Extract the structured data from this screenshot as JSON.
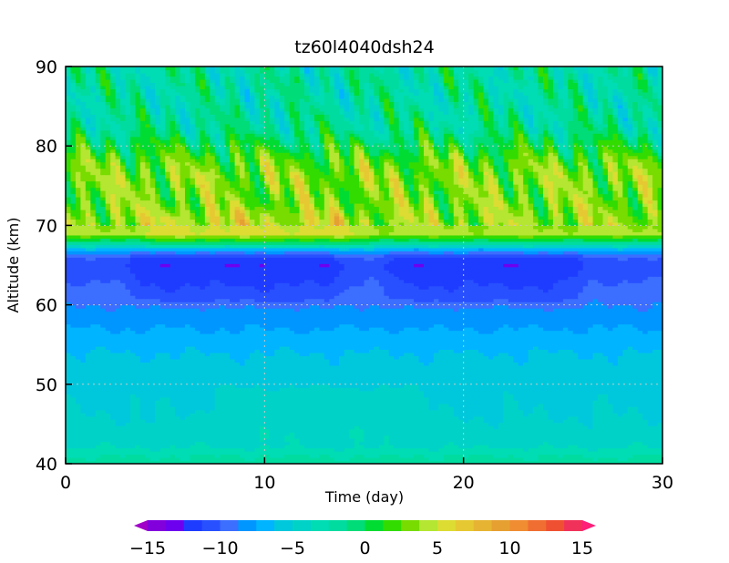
{
  "chart_data": {
    "type": "heatmap",
    "title": "tz60l4040dsh24",
    "xlabel": "Time (day)",
    "ylabel": "Altitude (km)",
    "xlim": [
      0,
      30
    ],
    "ylim": [
      40,
      90
    ],
    "x_ticks": [
      0,
      10,
      20,
      30
    ],
    "x_tick_labels": [
      "0",
      "10",
      "20",
      "30"
    ],
    "y_ticks": [
      40,
      50,
      60,
      70,
      80,
      90
    ],
    "y_tick_labels": [
      "40",
      "50",
      "60",
      "70",
      "80",
      "90"
    ],
    "grid": true,
    "colorbar": {
      "min": -15,
      "max": 15,
      "step": 1.5,
      "tick_values": [
        -15,
        -10,
        -5,
        0,
        5,
        10,
        15
      ],
      "tick_labels": [
        "−15",
        "−10",
        "−5",
        "0",
        "5",
        "10",
        "15"
      ],
      "extend": "both",
      "colors": [
        "#a000c8",
        "#8200dc",
        "#6e00f0",
        "#1e3cff",
        "#2850ff",
        "#3c6eff",
        "#0096ff",
        "#00b4ff",
        "#00c8dc",
        "#00d2c8",
        "#00dcb4",
        "#00dca0",
        "#00dc78",
        "#00dc32",
        "#32dc00",
        "#78dc00",
        "#b4e632",
        "#dcdc32",
        "#e6c832",
        "#e6b432",
        "#e6a032",
        "#f08c32",
        "#f06e32",
        "#f05032",
        "#f0325a",
        "#ff1e78"
      ]
    },
    "profile_altitude_km": [
      40,
      41,
      42,
      44,
      46,
      48,
      50,
      52,
      54,
      56,
      58,
      60,
      62,
      64,
      65,
      66,
      67,
      67.5,
      68,
      68.5,
      69,
      70,
      72,
      74,
      76,
      78,
      80,
      81,
      82,
      84,
      86,
      88,
      90
    ],
    "profile_value": [
      0.5,
      0.0,
      -1.5,
      -2.5,
      -3.0,
      -3.2,
      -3.5,
      -4.0,
      -4.5,
      -5.5,
      -6.5,
      -7.5,
      -8.5,
      -9.5,
      -10.0,
      -9.0,
      -5.0,
      -1.0,
      2.0,
      5.0,
      8.0,
      7.5,
      7.0,
      6.5,
      7.0,
      6.0,
      3.5,
      2.5,
      1.0,
      0.5,
      0.0,
      0.5,
      0.0
    ],
    "features": [
      {
        "t_start": 4,
        "t_end": 13,
        "z_min": 61,
        "z_max": 66,
        "delta": -1.8
      },
      {
        "t_start": 17,
        "t_end": 25,
        "z_min": 61,
        "z_max": 66,
        "delta": -1.8
      },
      {
        "t_start": 5,
        "t_end": 14,
        "z_min": 68,
        "z_max": 71,
        "delta": 1.5
      },
      {
        "t_start": 8,
        "t_end": 17,
        "z_min": 44,
        "z_max": 49,
        "delta": 0.8
      }
    ]
  }
}
